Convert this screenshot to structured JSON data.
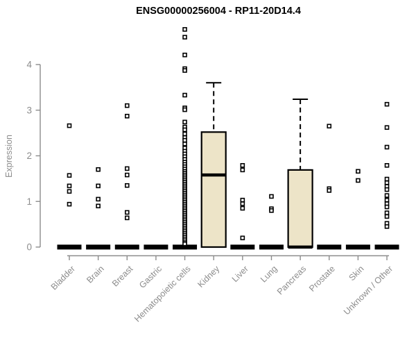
{
  "chart_data": {
    "type": "boxplot",
    "title": "ENSG00000256004 - RP11-20D14.4",
    "xlabel": "",
    "ylabel": "Expression",
    "ylim": [
      0,
      4.9
    ],
    "yticks": [
      0,
      1,
      2,
      3,
      4
    ],
    "grid": false,
    "legend": "none",
    "categories": [
      "Bladder",
      "Brain",
      "Breast",
      "Gastric",
      "Hematopoietic cells",
      "Kidney",
      "Liver",
      "Lung",
      "Pancreas",
      "Prostate",
      "Skin",
      "Unknown / Other"
    ],
    "boxes": [
      {
        "category": "Bladder",
        "q1": 0,
        "median": 0,
        "q3": 0,
        "whisker_low": 0,
        "whisker_high": 0,
        "outliers": [
          2.66,
          1.57,
          1.34,
          1.22,
          0.94
        ]
      },
      {
        "category": "Brain",
        "q1": 0,
        "median": 0,
        "q3": 0,
        "whisker_low": 0,
        "whisker_high": 0,
        "outliers": [
          1.7,
          1.34,
          1.05,
          0.9
        ]
      },
      {
        "category": "Breast",
        "q1": 0,
        "median": 0,
        "q3": 0,
        "whisker_low": 0,
        "whisker_high": 0,
        "outliers": [
          3.1,
          2.87,
          1.72,
          1.58,
          1.35,
          0.76,
          0.64
        ]
      },
      {
        "category": "Gastric",
        "q1": 0,
        "median": 0,
        "q3": 0,
        "whisker_low": 0,
        "whisker_high": 0,
        "outliers": []
      },
      {
        "category": "Hematopoietic cells",
        "q1": 0,
        "median": 0,
        "q3": 0,
        "whisker_low": 0,
        "whisker_high": 0,
        "outliers": [
          4.77,
          4.6,
          4.21,
          3.91,
          3.87,
          3.33,
          3.05,
          3.01,
          2.74,
          2.63,
          2.57,
          2.48,
          2.4,
          2.34,
          2.26,
          2.17,
          2.1,
          2.04,
          1.98,
          1.92,
          1.86,
          1.81,
          1.76,
          1.71,
          1.66,
          1.62,
          1.58,
          1.54,
          1.5,
          1.46,
          1.42,
          1.38,
          1.34,
          1.3,
          1.26,
          1.22,
          1.18,
          1.14,
          1.1,
          1.06,
          1.02,
          0.98,
          0.94,
          0.9,
          0.86,
          0.82,
          0.78,
          0.74,
          0.7,
          0.66,
          0.62,
          0.58,
          0.54,
          0.5,
          0.46,
          0.42,
          0.38,
          0.34,
          0.3,
          0.26,
          0.22,
          0.18,
          0.14,
          0.1,
          0.07
        ]
      },
      {
        "category": "Kidney",
        "q1": 0,
        "median": 1.58,
        "q3": 2.52,
        "whisker_low": 0,
        "whisker_high": 3.6,
        "outliers": []
      },
      {
        "category": "Liver",
        "q1": 0,
        "median": 0,
        "q3": 0,
        "whisker_low": 0,
        "whisker_high": 0,
        "outliers": [
          1.79,
          1.69,
          1.03,
          0.95,
          0.85,
          0.2
        ]
      },
      {
        "category": "Lung",
        "q1": 0,
        "median": 0,
        "q3": 0,
        "whisker_low": 0,
        "whisker_high": 0,
        "outliers": [
          1.11,
          0.84,
          0.8
        ]
      },
      {
        "category": "Pancreas",
        "q1": 0,
        "median": 0,
        "q3": 1.69,
        "whisker_low": 0,
        "whisker_high": 3.24,
        "outliers": []
      },
      {
        "category": "Prostate",
        "q1": 0,
        "median": 0,
        "q3": 0,
        "whisker_low": 0,
        "whisker_high": 0,
        "outliers": [
          2.65,
          1.28,
          1.24
        ]
      },
      {
        "category": "Skin",
        "q1": 0,
        "median": 0,
        "q3": 0,
        "whisker_low": 0,
        "whisker_high": 0,
        "outliers": [
          1.66,
          1.46
        ]
      },
      {
        "category": "Unknown / Other",
        "q1": 0,
        "median": 0,
        "q3": 0,
        "whisker_low": 0,
        "whisker_high": 0,
        "outliers": [
          3.13,
          2.62,
          2.19,
          1.79,
          1.49,
          1.41,
          1.33,
          1.26,
          1.13,
          1.03,
          0.95,
          0.88,
          0.75,
          0.67,
          0.52,
          0.45
        ]
      }
    ],
    "colors": {
      "box_fill": "#EDE4C8",
      "box_stroke": "#000000",
      "median": "#000000",
      "whisker": "#000000",
      "outlier_fill": "#ffffff",
      "outlier_stroke": "#000000",
      "axis": "#8c8c8c",
      "tick_label": "#8c8c8c",
      "title": "#000000",
      "background": "#ffffff"
    }
  }
}
